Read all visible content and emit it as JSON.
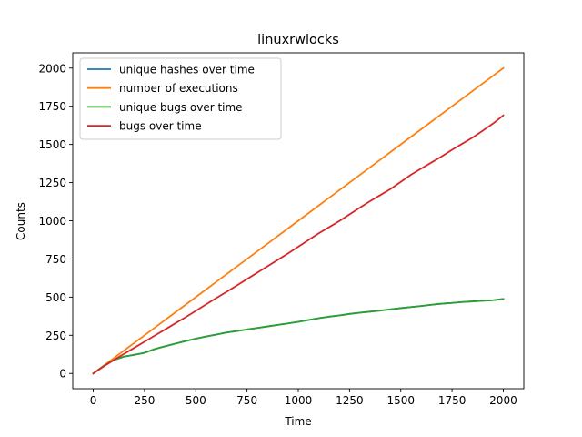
{
  "chart_data": {
    "type": "line",
    "title": "linuxrwlocks",
    "xlabel": "Time",
    "ylabel": "Counts",
    "xlim": [
      -100,
      2100
    ],
    "ylim": [
      -100,
      2100
    ],
    "xticks": [
      0,
      250,
      500,
      750,
      1000,
      1250,
      1500,
      1750,
      2000
    ],
    "yticks": [
      0,
      250,
      500,
      750,
      1000,
      1250,
      1500,
      1750,
      2000
    ],
    "xtick_labels": [
      "0",
      "250",
      "500",
      "750",
      "1000",
      "1250",
      "1500",
      "1750",
      "2000"
    ],
    "ytick_labels": [
      "0",
      "250",
      "500",
      "750",
      "1000",
      "1250",
      "1500",
      "1750",
      "2000"
    ],
    "grid": false,
    "legend_position": "top-left",
    "x": [
      0,
      50,
      100,
      150,
      200,
      250,
      300,
      350,
      400,
      450,
      500,
      550,
      600,
      650,
      700,
      750,
      800,
      850,
      900,
      950,
      1000,
      1050,
      1100,
      1150,
      1200,
      1250,
      1300,
      1350,
      1400,
      1450,
      1500,
      1550,
      1600,
      1650,
      1700,
      1750,
      1800,
      1850,
      1900,
      1950,
      2000
    ],
    "series": [
      {
        "name": "unique hashes over time",
        "color": "#1f77b4",
        "values": [
          0,
          48,
          88,
          110,
          122,
          135,
          160,
          178,
          195,
          212,
          228,
          242,
          255,
          268,
          278,
          288,
          298,
          308,
          318,
          328,
          338,
          350,
          362,
          372,
          380,
          390,
          398,
          405,
          412,
          420,
          428,
          435,
          442,
          450,
          457,
          462,
          468,
          472,
          476,
          480,
          488
        ]
      },
      {
        "name": "number of executions",
        "color": "#ff7f0e",
        "values": [
          0,
          50,
          100,
          150,
          200,
          250,
          300,
          350,
          400,
          450,
          500,
          550,
          600,
          650,
          700,
          750,
          800,
          850,
          900,
          950,
          1000,
          1050,
          1100,
          1150,
          1200,
          1250,
          1300,
          1350,
          1400,
          1450,
          1500,
          1550,
          1600,
          1650,
          1700,
          1750,
          1800,
          1850,
          1900,
          1950,
          2000
        ]
      },
      {
        "name": "unique bugs over time",
        "color": "#2ca02c",
        "values": [
          0,
          48,
          88,
          110,
          122,
          135,
          160,
          178,
          195,
          212,
          228,
          242,
          255,
          268,
          278,
          288,
          298,
          308,
          318,
          328,
          338,
          350,
          362,
          372,
          380,
          390,
          398,
          405,
          412,
          420,
          428,
          435,
          442,
          450,
          457,
          462,
          468,
          472,
          476,
          480,
          488
        ]
      },
      {
        "name": "bugs over time",
        "color": "#d62728",
        "values": [
          0,
          45,
          88,
          128,
          168,
          208,
          248,
          288,
          328,
          368,
          410,
          452,
          494,
          534,
          576,
          618,
          660,
          702,
          744,
          786,
          830,
          874,
          918,
          958,
          998,
          1042,
          1086,
          1128,
          1168,
          1208,
          1255,
          1302,
          1342,
          1382,
          1422,
          1465,
          1505,
          1545,
          1590,
          1637,
          1690
        ]
      }
    ]
  }
}
